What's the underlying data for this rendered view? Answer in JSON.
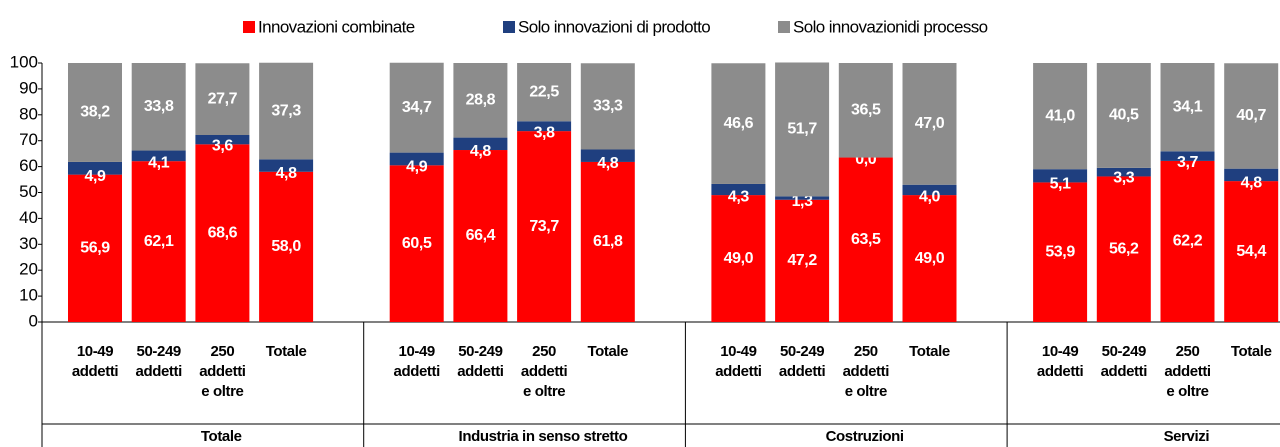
{
  "chart_data": {
    "type": "stacked_bar",
    "groups": [
      "Totale",
      "Industria in senso stretto",
      "Costruzioni",
      "Servizi"
    ],
    "categories": [
      [
        "10-49",
        "addetti"
      ],
      [
        "50-249",
        "addetti"
      ],
      [
        "250",
        "addetti",
        "e oltre"
      ],
      [
        "Totale"
      ],
      [
        "10-49",
        "addetti"
      ],
      [
        "50-249",
        "addetti"
      ],
      [
        "250",
        "addetti",
        "e oltre"
      ],
      [
        "Totale"
      ],
      [
        "10-49",
        "addetti"
      ],
      [
        "50-249",
        "addetti"
      ],
      [
        "250",
        "addetti",
        "e oltre"
      ],
      [
        "Totale"
      ],
      [
        "10-49",
        "addetti"
      ],
      [
        "50-249",
        "addetti"
      ],
      [
        "250",
        "addetti",
        "e oltre"
      ],
      [
        "Totale"
      ]
    ],
    "series": [
      {
        "name": "Innovazioni combinate",
        "color": "#ff0000",
        "values": [
          56.9,
          62.1,
          68.6,
          58.0,
          60.5,
          66.4,
          73.7,
          61.8,
          49.0,
          47.2,
          63.5,
          49.0,
          53.9,
          56.2,
          62.2,
          54.4
        ],
        "value_labels": [
          "56,9",
          "62,1",
          "68,6",
          "58,0",
          "60,5",
          "66,4",
          "73,7",
          "61,8",
          "49,0",
          "47,2",
          "63,5",
          "49,0",
          "53,9",
          "56,2",
          "62,2",
          "54,4"
        ]
      },
      {
        "name": "Solo innovazioni di prodotto",
        "color": "#1f3f7f",
        "values": [
          4.9,
          4.1,
          3.6,
          4.8,
          4.9,
          4.8,
          3.8,
          4.8,
          4.3,
          1.3,
          0.0,
          4.0,
          5.1,
          3.3,
          3.7,
          4.8
        ],
        "value_labels": [
          "4,9",
          "4,1",
          "3,6",
          "4,8",
          "4,9",
          "4,8",
          "3,8",
          "4,8",
          "4,3",
          "1,3",
          "0,0",
          "4,0",
          "5,1",
          "3,3",
          "3,7",
          "4,8"
        ]
      },
      {
        "name": "Solo innovazionidi processo",
        "color": "#8c8c8c",
        "values": [
          38.2,
          33.8,
          27.7,
          37.3,
          34.7,
          28.8,
          22.5,
          33.3,
          46.6,
          51.7,
          36.5,
          47.0,
          41.0,
          40.5,
          34.1,
          40.7
        ],
        "value_labels": [
          "38,2",
          "33,8",
          "27,7",
          "37,3",
          "34,7",
          "28,8",
          "22,5",
          "33,3",
          "46,6",
          "51,7",
          "36,5",
          "47,0",
          "41,0",
          "40,5",
          "34,1",
          "40,7"
        ]
      }
    ],
    "ylim": [
      0,
      100
    ],
    "yticks": [
      0,
      10,
      20,
      30,
      40,
      50,
      60,
      70,
      80,
      90,
      100
    ]
  }
}
